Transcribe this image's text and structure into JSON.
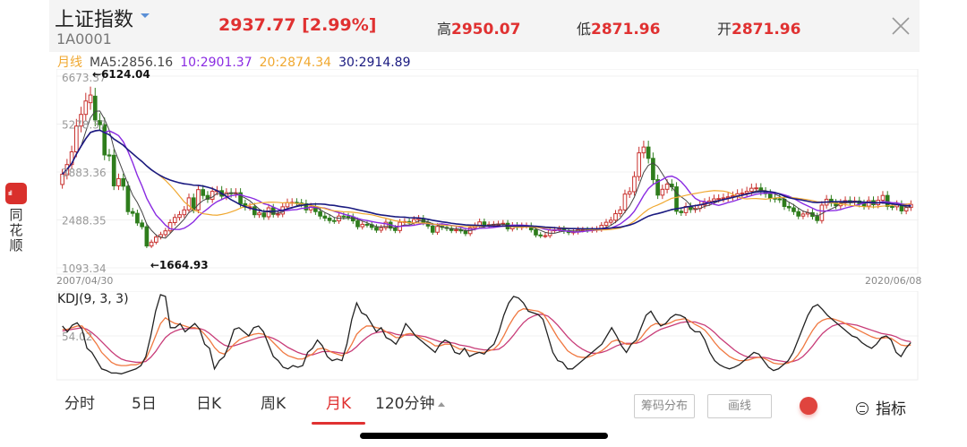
{
  "side_app": {
    "logo_text": "ııll",
    "name_lines": [
      "同",
      "花",
      "顺"
    ]
  },
  "header": {
    "title": "上证指数",
    "code": "1A0001",
    "price": "2937.77",
    "change_pct": "[2.99%]",
    "high_label": "高",
    "high": "2950.07",
    "low_label": "低",
    "low": "2871.96",
    "open_label": "开",
    "open": "2871.96"
  },
  "ma_legend": {
    "period": "月线",
    "ma5": "MA5:2856.16",
    "ma10": "10:2901.37",
    "ma20": "20:2874.34",
    "ma30": "30:2914.89"
  },
  "colors": {
    "up": "#c8312e",
    "down": "#2e7d1c",
    "ma5": "#444444",
    "ma10": "#8a2be2",
    "ma20": "#f0a830",
    "ma30": "#1a1a80",
    "k": "#222222",
    "d": "#f07840",
    "j": "#c83c78",
    "accent": "#e03131"
  },
  "chart_data": [
    {
      "type": "candlestick",
      "title": "上证指数 月线",
      "xlabel": "",
      "ylabel": "",
      "x_range": [
        "2007/04/30",
        "2020/06/08"
      ],
      "y_ticks": [
        "6673.37",
        "5278.37",
        "3883.36",
        "2488.35",
        "1093.34"
      ],
      "ylim": [
        1093.34,
        6673.37
      ],
      "annotations": [
        {
          "text": "←6124.04",
          "type": "max"
        },
        {
          "text": "←1664.93",
          "type": "min"
        }
      ],
      "series_legend": [
        {
          "name": "MA5",
          "value": 2856.16
        },
        {
          "name": "MA10",
          "value": 2901.37
        },
        {
          "name": "MA20",
          "value": 2874.34
        },
        {
          "name": "MA30",
          "value": 2914.89
        }
      ],
      "close": [
        3820,
        4100,
        4470,
        5220,
        5560,
        5950,
        6124,
        5400,
        5260,
        4380,
        4350,
        3480,
        3690,
        3470,
        2730,
        2680,
        2400,
        2290,
        1730,
        1840,
        1990,
        2060,
        2170,
        2410,
        2560,
        2640,
        2780,
        3130,
        2780,
        3370,
        3200,
        3090,
        3320,
        3340,
        3180,
        3280,
        3250,
        3280,
        2960,
        2860,
        2870,
        2640,
        2690,
        2580,
        2840,
        2650,
        2660,
        2870,
        2990,
        3000,
        2980,
        2960,
        2780,
        2870,
        2730,
        2600,
        2540,
        2470,
        2460,
        2600,
        2590,
        2570,
        2460,
        2290,
        2360,
        2350,
        2270,
        2190,
        2260,
        2420,
        2250,
        2180,
        2420,
        2440,
        2400,
        2500,
        2530,
        2420,
        2310,
        2130,
        2300,
        2270,
        2240,
        2180,
        2200,
        2170,
        2090,
        2260,
        2320,
        2430,
        2330,
        2350,
        2360,
        2370,
        2390,
        2230,
        2330,
        2270,
        2320,
        2320,
        2200,
        2050,
        2030,
        2030,
        2190,
        2200,
        2230,
        2160,
        2120,
        2140,
        2200,
        2200,
        2190,
        2200,
        2220,
        2330,
        2420,
        2480,
        2670,
        2780,
        3240,
        3310,
        3750,
        4440,
        4610,
        4280,
        3660,
        3210,
        3380,
        3530,
        3450,
        2740,
        2700,
        2880,
        2790,
        2820,
        2920,
        3000,
        3040,
        3100,
        3110,
        3130,
        3160,
        3190,
        3250,
        3270,
        3320,
        3410,
        3420,
        3310,
        3250,
        3120,
        3100,
        3090,
        2880,
        2840,
        2730,
        2600,
        2660,
        2700,
        2590,
        2470,
        2920,
        3090,
        2980,
        2900,
        2980,
        3050,
        3010,
        3040,
        2960,
        2890,
        3050,
        2930,
        3060,
        3200,
        2880,
        2870,
        2940,
        2750,
        2850,
        2940
      ],
      "open": [
        3520,
        3800,
        4100,
        4470,
        5220,
        5560,
        5900,
        6090,
        5380,
        5260,
        4380,
        4370,
        3480,
        3690,
        3470,
        2730,
        2680,
        2400,
        2290,
        1730,
        1840,
        1990,
        2060,
        2170,
        2410,
        2560,
        2640,
        2780,
        3130,
        2780,
        3370,
        3200,
        3090,
        3320,
        3340,
        3180,
        3280,
        3250,
        3280,
        2960,
        2860,
        2870,
        2640,
        2690,
        2580,
        2840,
        2650,
        2660,
        2870,
        2990,
        3000,
        2980,
        2960,
        2780,
        2870,
        2730,
        2600,
        2540,
        2470,
        2460,
        2600,
        2590,
        2570,
        2460,
        2290,
        2360,
        2350,
        2270,
        2190,
        2260,
        2420,
        2250,
        2180,
        2420,
        2440,
        2400,
        2500,
        2530,
        2420,
        2310,
        2130,
        2300,
        2270,
        2240,
        2180,
        2200,
        2170,
        2090,
        2260,
        2320,
        2430,
        2330,
        2350,
        2360,
        2370,
        2390,
        2230,
        2330,
        2270,
        2320,
        2320,
        2200,
        2050,
        2030,
        2030,
        2190,
        2200,
        2230,
        2160,
        2120,
        2140,
        2200,
        2200,
        2190,
        2200,
        2220,
        2330,
        2420,
        2480,
        2670,
        2780,
        3240,
        3310,
        3750,
        4440,
        4610,
        4280,
        3660,
        3210,
        3380,
        3530,
        3450,
        2740,
        2700,
        2880,
        2790,
        2820,
        2920,
        3000,
        3040,
        3100,
        3110,
        3130,
        3160,
        3190,
        3250,
        3270,
        3320,
        3410,
        3420,
        3310,
        3250,
        3120,
        3100,
        3090,
        2880,
        2840,
        2730,
        2600,
        2660,
        2700,
        2590,
        2470,
        2920,
        3090,
        2980,
        2900,
        2980,
        3050,
        3010,
        3040,
        2960,
        2890,
        3050,
        2930,
        3060,
        3200,
        2880,
        2870,
        2940,
        2750,
        2850
      ]
    },
    {
      "type": "line",
      "title": "KDJ(9, 3, 3)",
      "y_ticks": [
        "54.02"
      ],
      "series": [
        {
          "name": "K",
          "values": [
            62,
            55,
            63,
            66,
            58,
            35,
            30,
            20,
            10,
            8,
            5,
            5,
            4,
            6,
            8,
            10,
            14,
            25,
            50,
            80,
            100,
            98,
            60,
            60,
            65,
            55,
            60,
            65,
            58,
            40,
            35,
            10,
            20,
            25,
            40,
            58,
            60,
            55,
            50,
            60,
            62,
            55,
            40,
            25,
            20,
            12,
            10,
            14,
            12,
            14,
            30,
            35,
            45,
            38,
            25,
            20,
            22,
            20,
            40,
            70,
            90,
            78,
            75,
            65,
            55,
            60,
            48,
            45,
            40,
            50,
            65,
            58,
            50,
            45,
            40,
            35,
            30,
            40,
            45,
            42,
            30,
            28,
            35,
            25,
            28,
            30,
            28,
            35,
            40,
            55,
            75,
            90,
            98,
            96,
            90,
            80,
            78,
            76,
            70,
            50,
            30,
            20,
            18,
            10,
            10,
            15,
            20,
            25,
            30,
            35,
            40,
            50,
            60,
            50,
            38,
            30,
            40,
            45,
            60,
            75,
            80,
            70,
            62,
            65,
            72,
            76,
            75,
            72,
            60,
            55,
            55,
            45,
            30,
            20,
            15,
            12,
            10,
            12,
            15,
            20,
            25,
            30,
            28,
            20,
            12,
            8,
            10,
            15,
            20,
            30,
            45,
            60,
            75,
            85,
            88,
            82,
            75,
            70,
            65,
            60,
            55,
            50,
            48,
            42,
            38,
            35,
            40,
            48,
            50,
            45,
            30,
            25,
            35,
            42
          ],
          "color": "#222222"
        },
        {
          "name": "D",
          "values": [
            58,
            58,
            60,
            62,
            62,
            55,
            48,
            40,
            30,
            24,
            18,
            15,
            14,
            14,
            15,
            15,
            17,
            22,
            35,
            50,
            65,
            72,
            68,
            65,
            64,
            62,
            60,
            60,
            58,
            52,
            45,
            36,
            30,
            28,
            33,
            40,
            45,
            48,
            50,
            52,
            53,
            52,
            48,
            42,
            36,
            30,
            26,
            24,
            22,
            22,
            25,
            28,
            34,
            35,
            33,
            30,
            28,
            26,
            30,
            40,
            52,
            58,
            62,
            62,
            60,
            59,
            55,
            52,
            48,
            48,
            52,
            53,
            51,
            48,
            45,
            42,
            38,
            38,
            40,
            40,
            37,
            34,
            34,
            32,
            31,
            30,
            30,
            32,
            34,
            40,
            50,
            62,
            72,
            80,
            83,
            82,
            81,
            80,
            77,
            68,
            58,
            48,
            40,
            32,
            28,
            25,
            24,
            24,
            26,
            29,
            32,
            37,
            43,
            45,
            43,
            40,
            40,
            42,
            48,
            56,
            62,
            65,
            64,
            64,
            66,
            69,
            70,
            71,
            68,
            64,
            61,
            57,
            50,
            42,
            35,
            30,
            25,
            22,
            20,
            20,
            21,
            23,
            24,
            23,
            20,
            17,
            16,
            16,
            17,
            20,
            27,
            36,
            47,
            57,
            65,
            69,
            71,
            71,
            69,
            67,
            64,
            61,
            58,
            55,
            52,
            49,
            47,
            47,
            48,
            47,
            43,
            39,
            38,
            39
          ],
          "color": "#f07840"
        },
        {
          "name": "J",
          "values": [
            56,
            57,
            58,
            59,
            60,
            58,
            54,
            49,
            43,
            37,
            31,
            26,
            22,
            20,
            19,
            18,
            18,
            19,
            24,
            31,
            40,
            48,
            53,
            56,
            58,
            59,
            59,
            59,
            59,
            57,
            53,
            48,
            43,
            39,
            37,
            38,
            40,
            42,
            44,
            46,
            48,
            49,
            49,
            47,
            44,
            40,
            36,
            33,
            30,
            28,
            27,
            27,
            29,
            31,
            31,
            31,
            30,
            29,
            29,
            32,
            37,
            43,
            48,
            52,
            54,
            55,
            55,
            54,
            52,
            51,
            51,
            51,
            51,
            50,
            49,
            47,
            45,
            43,
            42,
            42,
            41,
            39,
            38,
            37,
            35,
            34,
            33,
            33,
            33,
            34,
            38,
            44,
            51,
            59,
            66,
            71,
            74,
            76,
            76,
            74,
            69,
            63,
            56,
            49,
            43,
            38,
            34,
            31,
            29,
            29,
            30,
            32,
            35,
            38,
            40,
            41,
            41,
            41,
            43,
            47,
            51,
            55,
            58,
            60,
            62,
            64,
            66,
            67,
            67,
            67,
            65,
            63,
            59,
            54,
            48,
            43,
            38,
            33,
            29,
            26,
            24,
            24,
            24,
            24,
            23,
            21,
            20,
            19,
            18,
            19,
            21,
            25,
            31,
            38,
            46,
            53,
            58,
            62,
            64,
            65,
            65,
            64,
            63,
            61,
            59,
            57,
            55,
            53,
            52,
            51,
            49,
            46,
            44,
            43
          ],
          "color": "#c83c78"
        }
      ],
      "ylim": [
        0,
        100
      ]
    }
  ],
  "chart_axis": {
    "date_start": "2007/04/30",
    "date_end": "2020/06/08",
    "kdj_label": "KDJ(9, 3, 3)"
  },
  "tabs": [
    {
      "label": "分时",
      "active": false
    },
    {
      "label": "5日",
      "active": false
    },
    {
      "label": "日K",
      "active": false
    },
    {
      "label": "周K",
      "active": false
    },
    {
      "label": "月K",
      "active": true
    },
    {
      "label": "120分钟",
      "active": false
    }
  ],
  "tools": {
    "chip_dist": "筹码分布",
    "draw_line": "画线",
    "indicator": "指标"
  }
}
